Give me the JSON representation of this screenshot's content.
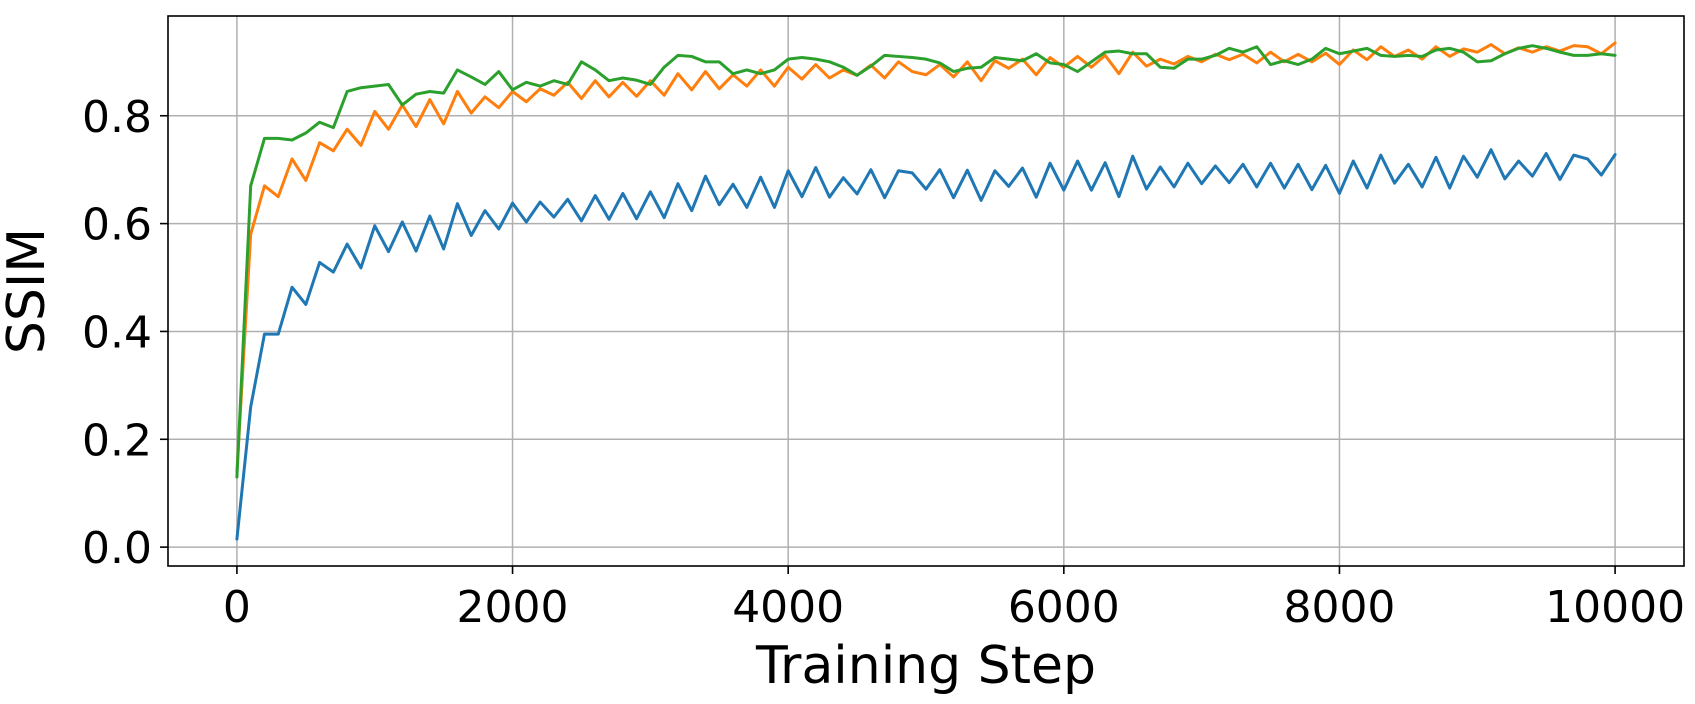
{
  "chart_data": {
    "type": "line",
    "title": "",
    "xlabel": "Training Step",
    "ylabel": "SSIM",
    "xlim": [
      -500,
      10500
    ],
    "ylim": [
      -0.035,
      0.985
    ],
    "xticks": [
      0,
      2000,
      4000,
      6000,
      8000,
      10000
    ],
    "xtick_labels": [
      "0",
      "2000",
      "4000",
      "6000",
      "8000",
      "10000"
    ],
    "yticks": [
      0.0,
      0.2,
      0.4,
      0.6,
      0.8
    ],
    "ytick_labels": [
      "0.0",
      "0.2",
      "0.4",
      "0.6",
      "0.8"
    ],
    "grid": true,
    "legend": "none",
    "x": [
      0,
      100,
      200,
      300,
      400,
      500,
      600,
      700,
      800,
      900,
      1000,
      1100,
      1200,
      1300,
      1400,
      1500,
      1600,
      1700,
      1800,
      1900,
      2000,
      2100,
      2200,
      2300,
      2400,
      2500,
      2600,
      2700,
      2800,
      2900,
      3000,
      3100,
      3200,
      3300,
      3400,
      3500,
      3600,
      3700,
      3800,
      3900,
      4000,
      4100,
      4200,
      4300,
      4400,
      4500,
      4600,
      4700,
      4800,
      4900,
      5000,
      5100,
      5200,
      5300,
      5400,
      5500,
      5600,
      5700,
      5800,
      5900,
      6000,
      6100,
      6200,
      6300,
      6400,
      6500,
      6600,
      6700,
      6800,
      6900,
      7000,
      7100,
      7200,
      7300,
      7400,
      7500,
      7600,
      7700,
      7800,
      7900,
      8000,
      8100,
      8200,
      8300,
      8400,
      8500,
      8600,
      8700,
      8800,
      8900,
      9000,
      9100,
      9200,
      9300,
      9400,
      9500,
      9600,
      9700,
      9800,
      9900,
      10000
    ],
    "series": [
      {
        "color": "#1f77b4",
        "values": [
          0.015,
          0.26,
          0.395,
          0.395,
          0.482,
          0.45,
          0.528,
          0.51,
          0.562,
          0.518,
          0.596,
          0.548,
          0.603,
          0.549,
          0.614,
          0.553,
          0.637,
          0.578,
          0.624,
          0.59,
          0.638,
          0.603,
          0.64,
          0.612,
          0.645,
          0.605,
          0.652,
          0.608,
          0.656,
          0.609,
          0.659,
          0.611,
          0.674,
          0.624,
          0.688,
          0.635,
          0.673,
          0.63,
          0.686,
          0.63,
          0.698,
          0.65,
          0.704,
          0.649,
          0.685,
          0.655,
          0.7,
          0.648,
          0.698,
          0.694,
          0.664,
          0.7,
          0.648,
          0.699,
          0.643,
          0.698,
          0.669,
          0.703,
          0.649,
          0.712,
          0.662,
          0.716,
          0.662,
          0.713,
          0.65,
          0.725,
          0.664,
          0.705,
          0.668,
          0.712,
          0.674,
          0.707,
          0.676,
          0.71,
          0.668,
          0.712,
          0.666,
          0.71,
          0.663,
          0.708,
          0.656,
          0.716,
          0.666,
          0.727,
          0.675,
          0.71,
          0.668,
          0.723,
          0.666,
          0.725,
          0.686,
          0.737,
          0.683,
          0.716,
          0.688,
          0.73,
          0.682,
          0.727,
          0.72,
          0.69,
          0.728
        ]
      },
      {
        "color": "#ff7f0e",
        "values": [
          0.14,
          0.58,
          0.67,
          0.65,
          0.72,
          0.68,
          0.75,
          0.735,
          0.775,
          0.745,
          0.808,
          0.775,
          0.82,
          0.78,
          0.83,
          0.785,
          0.845,
          0.805,
          0.835,
          0.815,
          0.845,
          0.826,
          0.85,
          0.838,
          0.862,
          0.832,
          0.865,
          0.835,
          0.862,
          0.836,
          0.865,
          0.838,
          0.878,
          0.848,
          0.882,
          0.85,
          0.876,
          0.855,
          0.885,
          0.855,
          0.89,
          0.868,
          0.895,
          0.87,
          0.885,
          0.875,
          0.894,
          0.87,
          0.9,
          0.882,
          0.876,
          0.895,
          0.872,
          0.9,
          0.865,
          0.902,
          0.888,
          0.905,
          0.876,
          0.908,
          0.89,
          0.91,
          0.89,
          0.912,
          0.878,
          0.918,
          0.892,
          0.905,
          0.896,
          0.91,
          0.9,
          0.914,
          0.904,
          0.914,
          0.898,
          0.918,
          0.9,
          0.914,
          0.9,
          0.916,
          0.895,
          0.922,
          0.904,
          0.928,
          0.91,
          0.922,
          0.905,
          0.928,
          0.91,
          0.924,
          0.918,
          0.932,
          0.915,
          0.926,
          0.918,
          0.928,
          0.92,
          0.93,
          0.928,
          0.915,
          0.935
        ]
      },
      {
        "color": "#2ca02c",
        "values": [
          0.13,
          0.67,
          0.758,
          0.758,
          0.755,
          0.768,
          0.788,
          0.778,
          0.845,
          0.852,
          0.855,
          0.858,
          0.82,
          0.84,
          0.845,
          0.842,
          0.885,
          0.872,
          0.858,
          0.882,
          0.848,
          0.862,
          0.855,
          0.865,
          0.858,
          0.9,
          0.885,
          0.865,
          0.87,
          0.866,
          0.858,
          0.89,
          0.912,
          0.91,
          0.9,
          0.9,
          0.878,
          0.885,
          0.878,
          0.885,
          0.905,
          0.908,
          0.905,
          0.9,
          0.89,
          0.875,
          0.892,
          0.912,
          0.91,
          0.908,
          0.905,
          0.898,
          0.882,
          0.888,
          0.89,
          0.908,
          0.905,
          0.902,
          0.915,
          0.898,
          0.895,
          0.882,
          0.9,
          0.918,
          0.92,
          0.915,
          0.915,
          0.89,
          0.888,
          0.905,
          0.905,
          0.912,
          0.925,
          0.918,
          0.928,
          0.895,
          0.902,
          0.895,
          0.905,
          0.925,
          0.915,
          0.92,
          0.925,
          0.912,
          0.91,
          0.912,
          0.91,
          0.922,
          0.925,
          0.918,
          0.9,
          0.902,
          0.915,
          0.925,
          0.93,
          0.925,
          0.918,
          0.912,
          0.912,
          0.915,
          0.912
        ]
      }
    ]
  }
}
